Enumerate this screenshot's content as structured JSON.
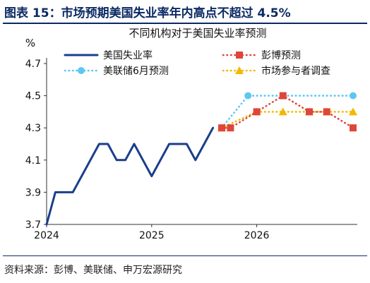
{
  "figure": {
    "title": "图表 15：市场预期美国失业率年内高点不超过 4.5%",
    "source": "资料来源：彭博、美联储、申万宏源研究"
  },
  "chart_data": {
    "type": "line",
    "title": "不同机构对于美国失业率预测",
    "xlabel": "",
    "ylabel": "%",
    "ylim": [
      3.7,
      4.7
    ],
    "yticks": [
      3.7,
      3.9,
      4.1,
      4.3,
      4.5,
      4.7
    ],
    "xlim": [
      "2024-01",
      "2026-12"
    ],
    "xticks": [
      {
        "x": "2024-01",
        "label": "2024"
      },
      {
        "x": "2025-01",
        "label": "2025"
      },
      {
        "x": "2026-01",
        "label": "2026"
      }
    ],
    "grid": false,
    "legend": "top, two columns",
    "series": [
      {
        "name": "美国失业率",
        "color": "#1a3e8c",
        "style": "solid",
        "marker": "none",
        "x": [
          "2024-01",
          "2024-02",
          "2024-03",
          "2024-04",
          "2024-05",
          "2024-06",
          "2024-07",
          "2024-08",
          "2024-09",
          "2024-10",
          "2024-11",
          "2024-12",
          "2025-01",
          "2025-02",
          "2025-03",
          "2025-04",
          "2025-05",
          "2025-06",
          "2025-07",
          "2025-08"
        ],
        "values": [
          3.7,
          3.9,
          3.9,
          3.9,
          4.0,
          4.1,
          4.2,
          4.2,
          4.1,
          4.1,
          4.2,
          4.1,
          4.0,
          4.1,
          4.2,
          4.2,
          4.2,
          4.1,
          4.2,
          4.3
        ]
      },
      {
        "name": "彭博预测",
        "color": "#e0453a",
        "style": "dotted",
        "marker": "square",
        "x": [
          "2025-09",
          "2025-10",
          "2026-01",
          "2026-04",
          "2026-07",
          "2026-09",
          "2026-12"
        ],
        "values": [
          4.3,
          4.3,
          4.4,
          4.5,
          4.4,
          4.4,
          4.3
        ]
      },
      {
        "name": "美联储6月预测",
        "color": "#5cc8f2",
        "style": "dotted",
        "marker": "circle",
        "x": [
          "2025-09",
          "2025-12",
          "2026-12"
        ],
        "values": [
          4.3,
          4.5,
          4.5
        ]
      },
      {
        "name": "市场参与者调查",
        "color": "#f2b900",
        "style": "dotted",
        "marker": "triangle",
        "x": [
          "2025-09",
          "2026-01",
          "2026-04",
          "2026-07",
          "2026-09",
          "2026-12"
        ],
        "values": [
          4.3,
          4.4,
          4.4,
          4.4,
          4.4,
          4.4
        ]
      }
    ]
  }
}
